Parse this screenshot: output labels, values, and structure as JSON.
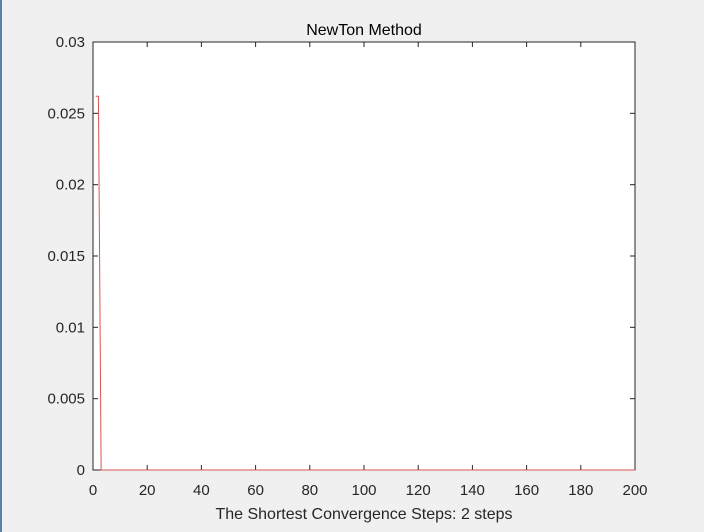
{
  "chart_data": {
    "type": "line",
    "title": "NewTon Method",
    "xlabel": "The Shortest Convergence Steps: 2 steps",
    "ylabel": "",
    "xlim": [
      0,
      200
    ],
    "ylim": [
      0,
      0.03
    ],
    "xticks": [
      0,
      20,
      40,
      60,
      80,
      100,
      120,
      140,
      160,
      180,
      200
    ],
    "xtick_labels": [
      "0",
      "20",
      "40",
      "60",
      "80",
      "100",
      "120",
      "140",
      "160",
      "180",
      "200"
    ],
    "yticks": [
      0,
      0.005,
      0.01,
      0.015,
      0.02,
      0.025,
      0.03
    ],
    "ytick_labels": [
      "0",
      "0.005",
      "0.01",
      "0.015",
      "0.02",
      "0.025",
      "0.03"
    ],
    "grid": false,
    "series": [
      {
        "color": "#d9534f",
        "x": [
          1,
          2,
          3,
          200
        ],
        "y": [
          0.0262,
          0.0262,
          0,
          0
        ]
      }
    ]
  }
}
